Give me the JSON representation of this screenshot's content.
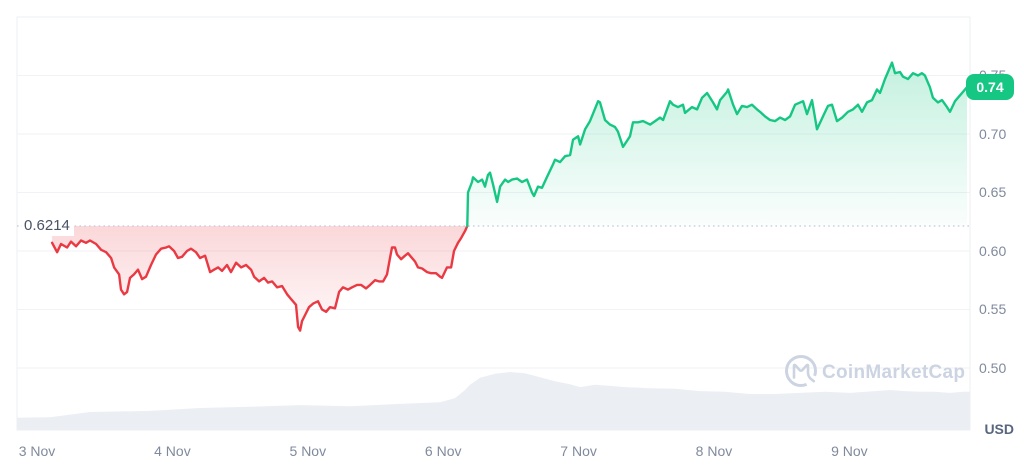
{
  "chart": {
    "unit_label": "USD",
    "baseline_label": "0.6214",
    "current_price_label": "0.74",
    "colors": {
      "up": "#16c784",
      "down": "#ea3943",
      "badge_bg": "#16c784",
      "badge_text": "#ffffff",
      "axis_text": "#808a9d",
      "baseline_text": "#4a5266",
      "grid": "#f0f2f6",
      "border": "#edeff3",
      "baseline_dots": "#c2c9d6",
      "volume_fill": "#ebeef3",
      "watermark": "#ccd4e2"
    }
  },
  "watermark": {
    "text": "CoinMarketCap"
  },
  "chart_data": {
    "type": "line",
    "title": "",
    "xlabel": "",
    "ylabel": "USD",
    "grid": "horizontal",
    "baseline_value": 0.6214,
    "current_price": 0.74,
    "ylim": [
      0.447,
      0.8
    ],
    "xlim_days": [
      -0.148,
      6.891
    ],
    "y_ticks": [
      {
        "v": 0.75,
        "label": "0.75"
      },
      {
        "v": 0.7,
        "label": "0.70"
      },
      {
        "v": 0.65,
        "label": "0.65"
      },
      {
        "v": 0.6,
        "label": "0.60"
      },
      {
        "v": 0.55,
        "label": "0.55"
      },
      {
        "v": 0.5,
        "label": "0.50"
      }
    ],
    "x_ticks": [
      {
        "t": 0,
        "label": "3 Nov"
      },
      {
        "t": 1,
        "label": "4 Nov"
      },
      {
        "t": 2,
        "label": "5 Nov"
      },
      {
        "t": 3,
        "label": "6 Nov"
      },
      {
        "t": 4,
        "label": "7 Nov"
      },
      {
        "t": 5,
        "label": "8 Nov"
      },
      {
        "t": 6,
        "label": "9 Nov"
      }
    ],
    "series": [
      {
        "name": "price-below-baseline",
        "color": "#ea3943",
        "points": [
          [
            0.111,
            0.607
          ],
          [
            0.148,
            0.599
          ],
          [
            0.177,
            0.606
          ],
          [
            0.222,
            0.603
          ],
          [
            0.251,
            0.608
          ],
          [
            0.288,
            0.604
          ],
          [
            0.325,
            0.609
          ],
          [
            0.362,
            0.607
          ],
          [
            0.391,
            0.609
          ],
          [
            0.436,
            0.606
          ],
          [
            0.473,
            0.601
          ],
          [
            0.51,
            0.599
          ],
          [
            0.547,
            0.594
          ],
          [
            0.569,
            0.586
          ],
          [
            0.606,
            0.58
          ],
          [
            0.62,
            0.567
          ],
          [
            0.643,
            0.563
          ],
          [
            0.665,
            0.565
          ],
          [
            0.687,
            0.577
          ],
          [
            0.716,
            0.58
          ],
          [
            0.746,
            0.584
          ],
          [
            0.776,
            0.576
          ],
          [
            0.805,
            0.578
          ],
          [
            0.842,
            0.588
          ],
          [
            0.879,
            0.597
          ],
          [
            0.916,
            0.602
          ],
          [
            0.953,
            0.603
          ],
          [
            0.975,
            0.604
          ],
          [
            1.012,
            0.6
          ],
          [
            1.041,
            0.594
          ],
          [
            1.071,
            0.595
          ],
          [
            1.108,
            0.6
          ],
          [
            1.137,
            0.602
          ],
          [
            1.174,
            0.599
          ],
          [
            1.204,
            0.594
          ],
          [
            1.241,
            0.596
          ],
          [
            1.278,
            0.582
          ],
          [
            1.307,
            0.584
          ],
          [
            1.337,
            0.586
          ],
          [
            1.366,
            0.583
          ],
          [
            1.403,
            0.588
          ],
          [
            1.433,
            0.582
          ],
          [
            1.47,
            0.59
          ],
          [
            1.507,
            0.586
          ],
          [
            1.544,
            0.588
          ],
          [
            1.581,
            0.584
          ],
          [
            1.603,
            0.578
          ],
          [
            1.64,
            0.574
          ],
          [
            1.677,
            0.577
          ],
          [
            1.706,
            0.573
          ],
          [
            1.736,
            0.574
          ],
          [
            1.773,
            0.569
          ],
          [
            1.81,
            0.57
          ],
          [
            1.847,
            0.563
          ],
          [
            1.876,
            0.559
          ],
          [
            1.913,
            0.554
          ],
          [
            1.928,
            0.535
          ],
          [
            1.943,
            0.532
          ],
          [
            1.957,
            0.54
          ],
          [
            1.987,
            0.547
          ],
          [
            2.009,
            0.552
          ],
          [
            2.039,
            0.555
          ],
          [
            2.075,
            0.557
          ],
          [
            2.105,
            0.55
          ],
          [
            2.135,
            0.548
          ],
          [
            2.164,
            0.552
          ],
          [
            2.201,
            0.551
          ],
          [
            2.231,
            0.565
          ],
          [
            2.26,
            0.569
          ],
          [
            2.297,
            0.567
          ],
          [
            2.327,
            0.569
          ],
          [
            2.364,
            0.571
          ],
          [
            2.393,
            0.571
          ],
          [
            2.43,
            0.568
          ],
          [
            2.46,
            0.571
          ],
          [
            2.496,
            0.575
          ],
          [
            2.526,
            0.574
          ],
          [
            2.556,
            0.574
          ],
          [
            2.585,
            0.58
          ],
          [
            2.607,
            0.594
          ],
          [
            2.622,
            0.603
          ],
          [
            2.644,
            0.603
          ],
          [
            2.659,
            0.597
          ],
          [
            2.689,
            0.593
          ],
          [
            2.718,
            0.596
          ],
          [
            2.74,
            0.598
          ],
          [
            2.762,
            0.595
          ],
          [
            2.792,
            0.591
          ],
          [
            2.814,
            0.586
          ],
          [
            2.844,
            0.585
          ],
          [
            2.881,
            0.582
          ],
          [
            2.91,
            0.581
          ],
          [
            2.947,
            0.581
          ],
          [
            2.977,
            0.578
          ],
          [
            2.991,
            0.577
          ],
          [
            3.028,
            0.586
          ],
          [
            3.058,
            0.586
          ],
          [
            3.08,
            0.6
          ],
          [
            3.109,
            0.607
          ],
          [
            3.132,
            0.611
          ],
          [
            3.161,
            0.617
          ],
          [
            3.178,
            0.6214
          ]
        ]
      },
      {
        "name": "price-above-baseline",
        "color": "#16c784",
        "points": [
          [
            3.178,
            0.6214
          ],
          [
            3.183,
            0.65
          ],
          [
            3.213,
            0.659
          ],
          [
            3.22,
            0.663
          ],
          [
            3.257,
            0.659
          ],
          [
            3.287,
            0.661
          ],
          [
            3.309,
            0.655
          ],
          [
            3.331,
            0.665
          ],
          [
            3.346,
            0.667
          ],
          [
            3.368,
            0.657
          ],
          [
            3.398,
            0.642
          ],
          [
            3.42,
            0.655
          ],
          [
            3.457,
            0.661
          ],
          [
            3.479,
            0.659
          ],
          [
            3.508,
            0.661
          ],
          [
            3.545,
            0.662
          ],
          [
            3.582,
            0.659
          ],
          [
            3.619,
            0.661
          ],
          [
            3.656,
            0.65
          ],
          [
            3.671,
            0.647
          ],
          [
            3.7,
            0.655
          ],
          [
            3.73,
            0.654
          ],
          [
            3.774,
            0.665
          ],
          [
            3.811,
            0.674
          ],
          [
            3.826,
            0.678
          ],
          [
            3.863,
            0.676
          ],
          [
            3.9,
            0.681
          ],
          [
            3.937,
            0.682
          ],
          [
            3.959,
            0.695
          ],
          [
            3.996,
            0.698
          ],
          [
            4.011,
            0.691
          ],
          [
            4.048,
            0.704
          ],
          [
            4.084,
            0.711
          ],
          [
            4.144,
            0.728
          ],
          [
            4.158,
            0.727
          ],
          [
            4.195,
            0.712
          ],
          [
            4.232,
            0.708
          ],
          [
            4.269,
            0.706
          ],
          [
            4.291,
            0.702
          ],
          [
            4.328,
            0.689
          ],
          [
            4.38,
            0.698
          ],
          [
            4.402,
            0.71
          ],
          [
            4.439,
            0.71
          ],
          [
            4.476,
            0.711
          ],
          [
            4.528,
            0.708
          ],
          [
            4.565,
            0.711
          ],
          [
            4.601,
            0.714
          ],
          [
            4.624,
            0.712
          ],
          [
            4.675,
            0.728
          ],
          [
            4.697,
            0.725
          ],
          [
            4.734,
            0.723
          ],
          [
            4.771,
            0.725
          ],
          [
            4.786,
            0.718
          ],
          [
            4.838,
            0.723
          ],
          [
            4.875,
            0.721
          ],
          [
            4.912,
            0.731
          ],
          [
            4.949,
            0.735
          ],
          [
            4.993,
            0.727
          ],
          [
            5.022,
            0.721
          ],
          [
            5.045,
            0.729
          ],
          [
            5.096,
            0.736
          ],
          [
            5.104,
            0.738
          ],
          [
            5.141,
            0.725
          ],
          [
            5.17,
            0.717
          ],
          [
            5.207,
            0.724
          ],
          [
            5.244,
            0.723
          ],
          [
            5.281,
            0.725
          ],
          [
            5.318,
            0.721
          ],
          [
            5.34,
            0.719
          ],
          [
            5.377,
            0.715
          ],
          [
            5.414,
            0.712
          ],
          [
            5.451,
            0.711
          ],
          [
            5.488,
            0.714
          ],
          [
            5.525,
            0.712
          ],
          [
            5.562,
            0.715
          ],
          [
            5.599,
            0.725
          ],
          [
            5.658,
            0.728
          ],
          [
            5.687,
            0.717
          ],
          [
            5.724,
            0.729
          ],
          [
            5.761,
            0.704
          ],
          [
            5.805,
            0.715
          ],
          [
            5.842,
            0.724
          ],
          [
            5.872,
            0.725
          ],
          [
            5.909,
            0.711
          ],
          [
            5.946,
            0.714
          ],
          [
            5.99,
            0.719
          ],
          [
            6.027,
            0.721
          ],
          [
            6.064,
            0.725
          ],
          [
            6.093,
            0.719
          ],
          [
            6.13,
            0.727
          ],
          [
            6.167,
            0.729
          ],
          [
            6.204,
            0.738
          ],
          [
            6.226,
            0.735
          ],
          [
            6.263,
            0.747
          ],
          [
            6.315,
            0.761
          ],
          [
            6.337,
            0.752
          ],
          [
            6.374,
            0.753
          ],
          [
            6.396,
            0.749
          ],
          [
            6.433,
            0.747
          ],
          [
            6.47,
            0.752
          ],
          [
            6.507,
            0.75
          ],
          [
            6.536,
            0.752
          ],
          [
            6.558,
            0.75
          ],
          [
            6.595,
            0.74
          ],
          [
            6.617,
            0.731
          ],
          [
            6.654,
            0.727
          ],
          [
            6.684,
            0.729
          ],
          [
            6.721,
            0.723
          ],
          [
            6.743,
            0.719
          ],
          [
            6.78,
            0.728
          ],
          [
            6.802,
            0.731
          ],
          [
            6.839,
            0.736
          ],
          [
            6.869,
            0.74
          ]
        ]
      }
    ],
    "volume_relative": [
      [
        -0.148,
        0.21
      ],
      [
        0.096,
        0.22
      ],
      [
        0.391,
        0.31
      ],
      [
        0.835,
        0.33
      ],
      [
        1.204,
        0.38
      ],
      [
        1.573,
        0.4
      ],
      [
        1.943,
        0.43
      ],
      [
        2.312,
        0.41
      ],
      [
        2.681,
        0.45
      ],
      [
        2.977,
        0.48
      ],
      [
        3.087,
        0.55
      ],
      [
        3.161,
        0.69
      ],
      [
        3.198,
        0.78
      ],
      [
        3.272,
        0.9
      ],
      [
        3.383,
        0.97
      ],
      [
        3.493,
        1.0
      ],
      [
        3.604,
        0.98
      ],
      [
        3.715,
        0.91
      ],
      [
        3.826,
        0.84
      ],
      [
        3.937,
        0.79
      ],
      [
        4.011,
        0.74
      ],
      [
        4.121,
        0.78
      ],
      [
        4.232,
        0.76
      ],
      [
        4.343,
        0.74
      ],
      [
        4.528,
        0.72
      ],
      [
        4.712,
        0.71
      ],
      [
        4.897,
        0.67
      ],
      [
        5.081,
        0.66
      ],
      [
        5.266,
        0.62
      ],
      [
        5.451,
        0.62
      ],
      [
        5.635,
        0.64
      ],
      [
        5.82,
        0.66
      ],
      [
        6.005,
        0.64
      ],
      [
        6.189,
        0.67
      ],
      [
        6.3,
        0.69
      ],
      [
        6.411,
        0.67
      ],
      [
        6.521,
        0.66
      ],
      [
        6.632,
        0.66
      ],
      [
        6.743,
        0.64
      ],
      [
        6.839,
        0.66
      ],
      [
        6.891,
        0.66
      ]
    ]
  }
}
